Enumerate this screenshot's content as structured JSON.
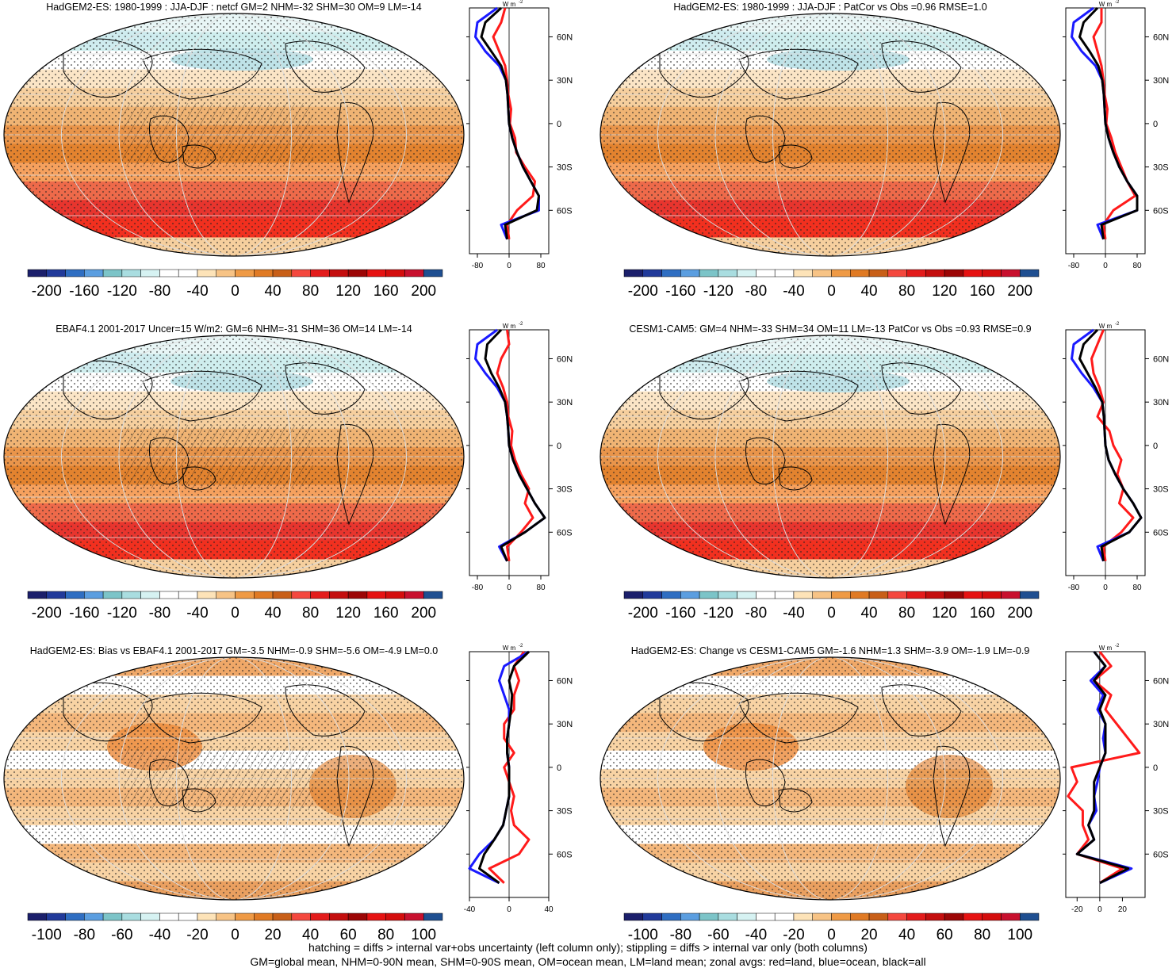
{
  "palette": [
    "#1b1f6b",
    "#213a9a",
    "#2f6ec2",
    "#5b9ee0",
    "#7cc4c8",
    "#a9dde0",
    "#d6f2f2",
    "#ffffff",
    "#ffffff",
    "#fde3b8",
    "#f7c385",
    "#ef9a45",
    "#e07a24",
    "#c85f18",
    "#f4483e",
    "#e31b1b",
    "#c40e0e",
    "#9c0606",
    "#e61212",
    "#d40d0d",
    "#c8102e",
    "#1f4f91"
  ],
  "colorbar_abs": [
    "-200",
    "-160",
    "-120",
    "-80",
    "-40",
    "0",
    "40",
    "80",
    "120",
    "160",
    "200"
  ],
  "colorbar_diff": [
    "-100",
    "-80",
    "-60",
    "-40",
    "-20",
    "0",
    "20",
    "40",
    "60",
    "80",
    "100"
  ],
  "lat_ticks": [
    "60N",
    "30N",
    "0",
    "30S",
    "60S"
  ],
  "units": "W m",
  "units_sup": "-2",
  "panels": [
    {
      "title": "HadGEM2-ES: 1980-1999 : JJA-DJF : netcf GM=2 NHM=-32 SHM=30 OM=9 LM=-14",
      "zx": [
        "-80",
        "0",
        "80"
      ],
      "kind": "abs"
    },
    {
      "title": "HadGEM2-ES: 1980-1999 : JJA-DJF : PatCor vs Obs =0.96 RMSE=1.0",
      "zx": [
        "-80",
        "0",
        "80"
      ],
      "kind": "abs"
    },
    {
      "title": "EBAF4.1 2001-2017 Uncer=15 W/m2: GM=6 NHM=-31 SHM=36 OM=14 LM=-14",
      "zx": [
        "-80",
        "0",
        "80"
      ],
      "kind": "abs"
    },
    {
      "title": "CESM1-CAM5: GM=4 NHM=-33 SHM=34 OM=11 LM=-13 PatCor vs Obs =0.93 RMSE=0.9",
      "zx": [
        "-80",
        "0",
        "80"
      ],
      "kind": "abs"
    },
    {
      "title": "HadGEM2-ES: Bias vs EBAF4.1 2001-2017 GM=-3.5 NHM=-0.9 SHM=-5.6 OM=-4.9 LM=0.0",
      "zx": [
        "-40",
        "0",
        "40"
      ],
      "kind": "diff"
    },
    {
      "title": "HadGEM2-ES: Change vs CESM1-CAM5 GM=-1.6 NHM=1.3 SHM=-3.9 OM=-1.9 LM=-0.9",
      "zx": [
        "-20",
        "0",
        "20"
      ],
      "kind": "diff"
    }
  ],
  "caption_line1": "hatching = diffs > internal var+obs uncertainty (left column only); stippling = diffs > internal var only (both columns)",
  "caption_line2": "GM=global mean, NHM=0-90N mean, SHM=0-90S mean, OM=ocean mean, LM=land mean; zonal avgs: red=land, blue=ocean, black=all",
  "chart_data": [
    {
      "type": "heatmap",
      "title": "HadGEM2-ES: 1980-1999 : JJA-DJF : netcf GM=2 NHM=-32 SHM=30 OM=9 LM=-14",
      "colorbar": {
        "min": -200,
        "max": 200,
        "step": 20
      },
      "zonal_profile": {
        "lat": [
          80,
          70,
          60,
          50,
          40,
          30,
          20,
          10,
          0,
          -10,
          -20,
          -30,
          -40,
          -50,
          -60,
          -70,
          -80
        ],
        "xlim": [
          -100,
          100
        ],
        "all": [
          -20,
          -60,
          -70,
          -45,
          -20,
          -8,
          -4,
          -2,
          0,
          8,
          20,
          35,
          55,
          75,
          70,
          -10,
          -5
        ],
        "ocean": [
          -30,
          -80,
          -85,
          -60,
          -25,
          -8,
          -4,
          -2,
          0,
          8,
          20,
          35,
          55,
          75,
          75,
          -20,
          -5
        ],
        "land": [
          -10,
          -20,
          -40,
          -25,
          -10,
          -5,
          -2,
          5,
          2,
          15,
          18,
          40,
          65,
          60,
          20,
          -5,
          0
        ]
      }
    },
    {
      "type": "heatmap",
      "title": "HadGEM2-ES: 1980-1999 : JJA-DJF : PatCor vs Obs =0.96 RMSE=1.0",
      "colorbar": {
        "min": -200,
        "max": 200,
        "step": 20
      },
      "zonal_profile": {
        "lat": [
          80,
          70,
          60,
          50,
          40,
          30,
          20,
          10,
          0,
          -10,
          -20,
          -30,
          -40,
          -50,
          -60,
          -70,
          -80
        ],
        "xlim": [
          -100,
          100
        ],
        "all": [
          -20,
          -55,
          -65,
          -40,
          -18,
          -8,
          -4,
          -2,
          0,
          8,
          20,
          35,
          55,
          80,
          80,
          -10,
          -5
        ],
        "ocean": [
          -30,
          -80,
          -85,
          -60,
          -25,
          -8,
          -4,
          -2,
          0,
          8,
          20,
          35,
          55,
          80,
          80,
          -20,
          -5
        ],
        "land": [
          -10,
          -10,
          -30,
          -20,
          -10,
          -5,
          -2,
          5,
          2,
          15,
          25,
          40,
          55,
          75,
          20,
          -5,
          0
        ]
      }
    },
    {
      "type": "heatmap",
      "title": "EBAF4.1 2001-2017 Uncer=15 W/m2: GM=6 NHM=-31 SHM=36 OM=14 LM=-14",
      "colorbar": {
        "min": -200,
        "max": 200,
        "step": 20
      },
      "zonal_profile": {
        "lat": [
          80,
          70,
          60,
          50,
          40,
          30,
          20,
          10,
          0,
          -10,
          -20,
          -30,
          -40,
          -50,
          -60,
          -70,
          -80
        ],
        "xlim": [
          -100,
          100
        ],
        "all": [
          -20,
          -55,
          -60,
          -45,
          -25,
          -10,
          -5,
          -2,
          0,
          10,
          25,
          45,
          65,
          90,
          40,
          -20,
          -5
        ],
        "ocean": [
          -30,
          -80,
          -85,
          -60,
          -30,
          -10,
          -5,
          -2,
          0,
          10,
          25,
          45,
          65,
          90,
          40,
          -25,
          -5
        ],
        "land": [
          -5,
          0,
          -20,
          -30,
          -15,
          -5,
          -2,
          8,
          5,
          15,
          30,
          50,
          40,
          60,
          30,
          -5,
          0
        ]
      }
    },
    {
      "type": "heatmap",
      "title": "CESM1-CAM5: GM=4 NHM=-33 SHM=34 OM=11 LM=-13 PatCor vs Obs =0.93 RMSE=0.9",
      "colorbar": {
        "min": -200,
        "max": 200,
        "step": 20
      },
      "zonal_profile": {
        "lat": [
          80,
          70,
          60,
          50,
          40,
          30,
          20,
          10,
          0,
          -10,
          -20,
          -30,
          -40,
          -50,
          -60,
          -70,
          -80
        ],
        "xlim": [
          -100,
          100
        ],
        "all": [
          -20,
          -55,
          -65,
          -45,
          -25,
          -8,
          -4,
          -2,
          0,
          8,
          25,
          45,
          70,
          90,
          60,
          -10,
          -5
        ],
        "ocean": [
          -30,
          -80,
          -85,
          -60,
          -30,
          -8,
          -4,
          -2,
          0,
          8,
          25,
          45,
          70,
          90,
          60,
          -20,
          -5
        ],
        "land": [
          -5,
          -20,
          -35,
          -30,
          -15,
          -5,
          -20,
          10,
          20,
          40,
          30,
          45,
          35,
          70,
          40,
          -5,
          0
        ]
      }
    },
    {
      "type": "heatmap",
      "title": "HadGEM2-ES: Bias vs EBAF4.1 2001-2017 GM=-3.5 NHM=-0.9 SHM=-5.6 OM=-4.9 LM=0.0",
      "colorbar": {
        "min": -100,
        "max": 100,
        "step": 10
      },
      "zonal_profile": {
        "lat": [
          80,
          70,
          60,
          50,
          40,
          30,
          20,
          10,
          0,
          -10,
          -20,
          -30,
          -40,
          -50,
          -60,
          -70,
          -80
        ],
        "xlim": [
          -40,
          40
        ],
        "all": [
          20,
          5,
          0,
          3,
          2,
          0,
          -2,
          -2,
          0,
          0,
          0,
          -3,
          -6,
          -15,
          -25,
          -30,
          -10
        ],
        "ocean": [
          20,
          -5,
          -10,
          -5,
          0,
          0,
          -2,
          -2,
          0,
          0,
          0,
          -3,
          -6,
          -15,
          -30,
          -40,
          -10
        ],
        "land": [
          15,
          5,
          10,
          5,
          5,
          -5,
          -5,
          5,
          -5,
          0,
          5,
          2,
          5,
          20,
          10,
          -20,
          -5
        ]
      }
    },
    {
      "type": "heatmap",
      "title": "HadGEM2-ES: Change vs CESM1-CAM5 GM=-1.6 NHM=1.3 SHM=-3.9 OM=-1.9 LM=-0.9",
      "colorbar": {
        "min": -100,
        "max": 100,
        "step": 10
      },
      "zonal_profile": {
        "lat": [
          80,
          70,
          60,
          50,
          40,
          30,
          20,
          10,
          0,
          -10,
          -20,
          -30,
          -40,
          -50,
          -60,
          -70,
          -80
        ],
        "xlim": [
          -30,
          40
        ],
        "all": [
          -5,
          5,
          -5,
          5,
          0,
          5,
          5,
          5,
          0,
          -5,
          -5,
          -5,
          -10,
          -5,
          -20,
          25,
          0
        ],
        "ocean": [
          -5,
          5,
          -8,
          3,
          -2,
          5,
          3,
          5,
          0,
          -2,
          -5,
          -3,
          -10,
          -5,
          -20,
          28,
          0
        ],
        "land": [
          0,
          10,
          -5,
          10,
          5,
          15,
          25,
          35,
          -25,
          -20,
          -28,
          -15,
          -15,
          -10,
          -20,
          20,
          0
        ]
      }
    }
  ]
}
